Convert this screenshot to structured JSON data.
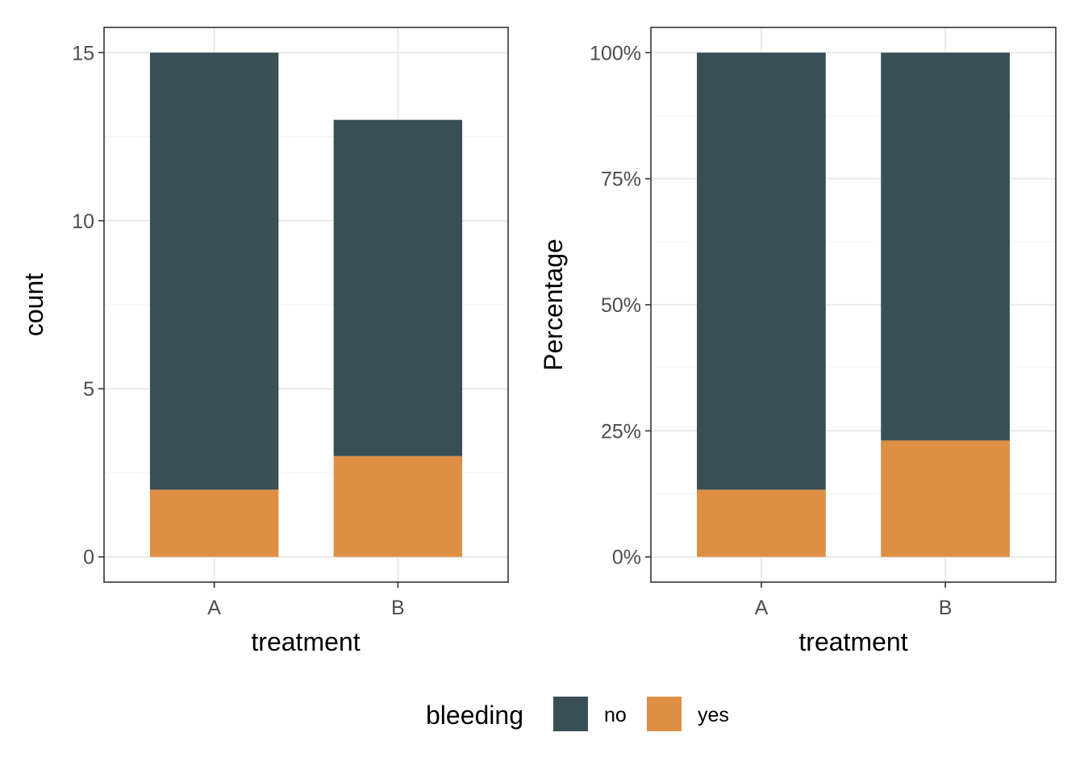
{
  "chart_data": [
    {
      "type": "bar",
      "stacked": true,
      "categories": [
        "A",
        "B"
      ],
      "series": [
        {
          "name": "no",
          "values": [
            13,
            10
          ]
        },
        {
          "name": "yes",
          "values": [
            2,
            3
          ]
        }
      ],
      "xlabel": "treatment",
      "ylabel": "count",
      "ylim": [
        -0.75,
        15.75
      ],
      "yticks": [
        0,
        5,
        10,
        15
      ],
      "ytick_labels": [
        "0",
        "5",
        "10",
        "15"
      ],
      "grid": true
    },
    {
      "type": "bar",
      "stacked": true,
      "percent": true,
      "categories": [
        "A",
        "B"
      ],
      "series": [
        {
          "name": "no",
          "values": [
            86.67,
            76.92
          ]
        },
        {
          "name": "yes",
          "values": [
            13.33,
            23.08
          ]
        }
      ],
      "xlabel": "treatment",
      "ylabel": "Percentage",
      "ylim": [
        -5,
        105
      ],
      "yticks": [
        0,
        25,
        50,
        75,
        100
      ],
      "ytick_labels": [
        "0%",
        "25%",
        "50%",
        "75%",
        "100%"
      ],
      "grid": true
    }
  ],
  "legend": {
    "title": "bleeding",
    "position": "bottom",
    "items": [
      {
        "label": "no",
        "color": "#384F56"
      },
      {
        "label": "yes",
        "color": "#DE8F44"
      }
    ]
  },
  "colors": {
    "no": "#384F56",
    "yes": "#DE8F44",
    "grid_major": "#EBEBEB",
    "grid_minor": "#F5F5F5",
    "panel_border": "#333333"
  }
}
